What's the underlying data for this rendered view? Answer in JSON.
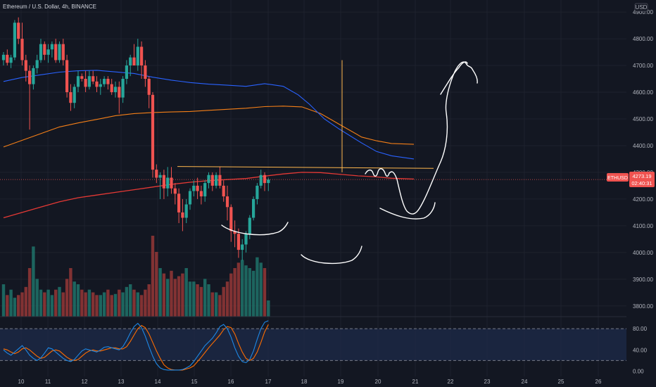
{
  "header": {
    "title": "Ethereum / U.S. Dollar, 4h, BINANCE",
    "currency": "USD"
  },
  "price_tag": {
    "symbol": "ETHUSD",
    "price": "4273.19",
    "countdown": "02:40:31"
  },
  "colors": {
    "background": "#131722",
    "up": "#26a69a",
    "down": "#ef5350",
    "ma_fast": "#2962ff",
    "ma_slow": "#f57f17",
    "ma_long": "#e53935",
    "stoch_k": "#1e88e5",
    "stoch_d": "#ff6d00",
    "horizontal_line": "#ffb74d",
    "grid": "#1e222d"
  },
  "chart_data": [
    {
      "type": "candlestick",
      "x_labels": [
        "10",
        "11",
        "12",
        "13",
        "14",
        "15",
        "16",
        "17",
        "18",
        "19",
        "20",
        "21",
        "22",
        "23",
        "24",
        "25",
        "26"
      ],
      "y_ticks": [
        "4900.00",
        "4800.00",
        "4700.00",
        "4600.00",
        "4500.00",
        "4400.00",
        "4300.00",
        "4200.00",
        "4100.00",
        "4000.00",
        "3900.00",
        "3800.00"
      ],
      "ylim": [
        3760,
        4945
      ],
      "candles": [
        [
          4720,
          4750,
          4700,
          4740
        ],
        [
          4740,
          4760,
          4700,
          4710
        ],
        [
          4710,
          4740,
          4690,
          4730
        ],
        [
          4730,
          4870,
          4720,
          4860
        ],
        [
          4860,
          4880,
          4780,
          4800
        ],
        [
          4800,
          4860,
          4700,
          4720
        ],
        [
          4720,
          4740,
          4640,
          4680
        ],
        [
          4680,
          4700,
          4460,
          4630
        ],
        [
          4630,
          4700,
          4610,
          4690
        ],
        [
          4690,
          4740,
          4670,
          4720
        ],
        [
          4720,
          4800,
          4710,
          4780
        ],
        [
          4780,
          4790,
          4720,
          4740
        ],
        [
          4740,
          4780,
          4710,
          4760
        ],
        [
          4760,
          4790,
          4730,
          4780
        ],
        [
          4780,
          4800,
          4710,
          4720
        ],
        [
          4720,
          4790,
          4710,
          4780
        ],
        [
          4780,
          4800,
          4700,
          4720
        ],
        [
          4720,
          4740,
          4580,
          4600
        ],
        [
          4600,
          4630,
          4530,
          4560
        ],
        [
          4560,
          4630,
          4540,
          4620
        ],
        [
          4620,
          4680,
          4600,
          4660
        ],
        [
          4660,
          4670,
          4640,
          4650
        ],
        [
          4650,
          4680,
          4600,
          4620
        ],
        [
          4620,
          4680,
          4610,
          4660
        ],
        [
          4660,
          4680,
          4630,
          4640
        ],
        [
          4640,
          4660,
          4600,
          4620
        ],
        [
          4620,
          4650,
          4590,
          4630
        ],
        [
          4630,
          4660,
          4620,
          4650
        ],
        [
          4650,
          4660,
          4610,
          4630
        ],
        [
          4630,
          4650,
          4590,
          4600
        ],
        [
          4600,
          4640,
          4580,
          4620
        ],
        [
          4620,
          4640,
          4520,
          4580
        ],
        [
          4580,
          4660,
          4560,
          4650
        ],
        [
          4650,
          4720,
          4630,
          4700
        ],
        [
          4700,
          4740,
          4660,
          4730
        ],
        [
          4730,
          4780,
          4700,
          4700
        ],
        [
          4700,
          4800,
          4680,
          4770
        ],
        [
          4770,
          4790,
          4650,
          4700
        ],
        [
          4700,
          4720,
          4620,
          4650
        ],
        [
          4650,
          4660,
          4540,
          4590
        ],
        [
          4590,
          4600,
          4280,
          4310
        ],
        [
          4310,
          4330,
          4260,
          4280
        ],
        [
          4280,
          4300,
          4200,
          4290
        ],
        [
          4290,
          4310,
          4200,
          4240
        ],
        [
          4240,
          4320,
          4210,
          4280
        ],
        [
          4280,
          4320,
          4220,
          4240
        ],
        [
          4240,
          4260,
          4180,
          4220
        ],
        [
          4220,
          4240,
          4110,
          4150
        ],
        [
          4150,
          4200,
          4080,
          4130
        ],
        [
          4130,
          4200,
          4110,
          4180
        ],
        [
          4180,
          4240,
          4160,
          4230
        ],
        [
          4230,
          4270,
          4210,
          4250
        ],
        [
          4250,
          4280,
          4200,
          4230
        ],
        [
          4230,
          4250,
          4180,
          4210
        ],
        [
          4210,
          4270,
          4190,
          4260
        ],
        [
          4260,
          4300,
          4240,
          4290
        ],
        [
          4290,
          4300,
          4230,
          4250
        ],
        [
          4250,
          4300,
          4240,
          4290
        ],
        [
          4290,
          4320,
          4240,
          4250
        ],
        [
          4250,
          4270,
          4190,
          4210
        ],
        [
          4210,
          4250,
          4120,
          4170
        ],
        [
          4170,
          4180,
          4040,
          4080
        ],
        [
          4080,
          4120,
          4020,
          4070
        ],
        [
          4070,
          4090,
          3980,
          4010
        ],
        [
          4010,
          4050,
          3970,
          4030
        ],
        [
          4030,
          4080,
          4000,
          4070
        ],
        [
          4070,
          4140,
          4050,
          4130
        ],
        [
          4130,
          4210,
          4120,
          4200
        ],
        [
          4200,
          4260,
          4180,
          4250
        ],
        [
          4250,
          4310,
          4240,
          4290
        ],
        [
          4290,
          4300,
          4230,
          4260
        ],
        [
          4260,
          4280,
          4230,
          4273.19
        ]
      ],
      "volumes": [
        60,
        40,
        50,
        35,
        40,
        45,
        55,
        90,
        130,
        70,
        50,
        45,
        50,
        40,
        50,
        55,
        45,
        70,
        90,
        65,
        60,
        50,
        45,
        50,
        45,
        40,
        40,
        45,
        50,
        40,
        42,
        50,
        45,
        55,
        60,
        50,
        45,
        40,
        50,
        60,
        150,
        120,
        90,
        80,
        70,
        85,
        70,
        75,
        80,
        90,
        65,
        65,
        60,
        55,
        70,
        60,
        45,
        45,
        40,
        55,
        65,
        80,
        90,
        100,
        105,
        95,
        90,
        85,
        110,
        100,
        90,
        30
      ],
      "ma_fast": [
        [
          0,
          4640
        ],
        [
          5,
          4655
        ],
        [
          10,
          4665
        ],
        [
          15,
          4675
        ],
        [
          20,
          4680
        ],
        [
          25,
          4682
        ],
        [
          30,
          4676
        ],
        [
          35,
          4670
        ],
        [
          40,
          4656
        ],
        [
          45,
          4645
        ],
        [
          50,
          4636
        ],
        [
          55,
          4630
        ],
        [
          60,
          4626
        ],
        [
          65,
          4622
        ],
        [
          70,
          4632
        ],
        [
          75,
          4622
        ],
        [
          79,
          4590
        ],
        [
          82,
          4555
        ],
        [
          86,
          4500
        ],
        [
          90,
          4462
        ],
        [
          96,
          4410
        ],
        [
          100,
          4378
        ],
        [
          104,
          4362
        ],
        [
          110,
          4350
        ]
      ],
      "ma_slow": [
        [
          0,
          4395
        ],
        [
          5,
          4420
        ],
        [
          10,
          4445
        ],
        [
          15,
          4470
        ],
        [
          20,
          4485
        ],
        [
          25,
          4498
        ],
        [
          30,
          4512
        ],
        [
          35,
          4520
        ],
        [
          40,
          4524
        ],
        [
          45,
          4526
        ],
        [
          50,
          4528
        ],
        [
          55,
          4532
        ],
        [
          60,
          4536
        ],
        [
          65,
          4540
        ],
        [
          70,
          4546
        ],
        [
          75,
          4548
        ],
        [
          80,
          4545
        ],
        [
          85,
          4520
        ],
        [
          90,
          4480
        ],
        [
          96,
          4432
        ],
        [
          100,
          4418
        ],
        [
          104,
          4408
        ],
        [
          110,
          4405
        ]
      ],
      "ma_long": [
        [
          0,
          4130
        ],
        [
          5,
          4150
        ],
        [
          10,
          4170
        ],
        [
          15,
          4190
        ],
        [
          20,
          4205
        ],
        [
          25,
          4215
        ],
        [
          30,
          4225
        ],
        [
          35,
          4235
        ],
        [
          40,
          4245
        ],
        [
          45,
          4255
        ],
        [
          50,
          4263
        ],
        [
          55,
          4269
        ],
        [
          60,
          4273
        ],
        [
          65,
          4277
        ],
        [
          70,
          4286
        ],
        [
          75,
          4294
        ],
        [
          80,
          4300
        ],
        [
          85,
          4299
        ],
        [
          90,
          4293
        ],
        [
          95,
          4287
        ],
        [
          100,
          4283
        ],
        [
          104,
          4278
        ],
        [
          110,
          4275
        ]
      ],
      "horizontal_line": 4317,
      "vertical_marker_top": 4720
    },
    {
      "type": "line",
      "name": "stochastic",
      "y_ticks": [
        "80.00",
        "40.00",
        "0.00"
      ],
      "ylim": [
        -10,
        100
      ],
      "band": [
        20,
        80
      ],
      "k": [
        40,
        34,
        30,
        36,
        42,
        48,
        40,
        30,
        24,
        20,
        25,
        34,
        44,
        42,
        36,
        30,
        24,
        20,
        18,
        22,
        30,
        38,
        42,
        40,
        38,
        36,
        40,
        45,
        46,
        44,
        42,
        40,
        46,
        58,
        72,
        84,
        90,
        82,
        66,
        46,
        28,
        14,
        6,
        3,
        2,
        2,
        2,
        2,
        3,
        6,
        10,
        18,
        28,
        38,
        48,
        55,
        62,
        72,
        84,
        88,
        80,
        64,
        44,
        28,
        18,
        16,
        22,
        38,
        60,
        80,
        92,
        95
      ],
      "d": [
        42,
        40,
        36,
        33,
        36,
        42,
        44,
        40,
        34,
        28,
        24,
        26,
        32,
        38,
        40,
        38,
        32,
        26,
        22,
        20,
        22,
        28,
        34,
        38,
        40,
        38,
        38,
        40,
        42,
        44,
        44,
        42,
        42,
        46,
        56,
        68,
        80,
        86,
        82,
        70,
        54,
        38,
        24,
        12,
        6,
        3,
        2,
        2,
        2,
        4,
        6,
        10,
        18,
        26,
        35,
        44,
        52,
        60,
        68,
        78,
        84,
        82,
        70,
        52,
        36,
        24,
        20,
        24,
        36,
        54,
        74,
        88
      ]
    }
  ],
  "annotations": []
}
